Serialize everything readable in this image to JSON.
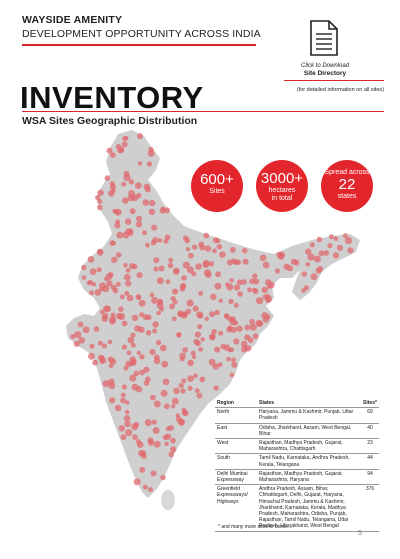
{
  "header": {
    "title": "WAYSIDE AMENITY",
    "subtitle": "DEVELOPMENT OPPORTUNITY ACROSS INDIA"
  },
  "download": {
    "icon": "document-icon",
    "caption": "Click to Download",
    "link_label": "Site Directory",
    "note": "(for detailed information on all sites)"
  },
  "page_title": "INVENTORY",
  "section_title": "WSA Sites Geographic Distribution",
  "stats": [
    {
      "value": "600+",
      "label": "Sites",
      "pre": ""
    },
    {
      "value": "3000+",
      "label": "hectares in total",
      "pre": ""
    },
    {
      "value": "22",
      "label": "states",
      "pre": "Spread across"
    }
  ],
  "colors": {
    "accent": "#e3262c",
    "map_land": "#cfcfcf",
    "dots": "#e06a6f"
  },
  "table": {
    "headers": [
      "Region",
      "States",
      "Sites*"
    ],
    "rows": [
      {
        "region": "North",
        "states": "Haryana, Jammu & Kashmir, Punjab, Uttar Pradesh",
        "sites": "69"
      },
      {
        "region": "East",
        "states": "Odisha, Jharkhand, Assam, West Bengal, Bihar",
        "sites": "40"
      },
      {
        "region": "West",
        "states": "Rajasthan, Madhya Pradesh, Gujarat, Maharashtra, Chattisgarh",
        "sites": "23"
      },
      {
        "region": "South",
        "states": "Tamil Nadu, Karnataka, Andhra Pradesh, Kerala, Telangana",
        "sites": "44"
      },
      {
        "region": "Delhi Mumbai Expressway",
        "states": "Rajasthan, Madhya Pradesh, Gujarat, Maharashtra, Haryana",
        "sites": "94"
      },
      {
        "region": "Greenfield Expressways/ Highways",
        "states": "Andhra Pradesh, Assam, Bihar, Chhattisgarh, Delhi, Gujarat, Haryana, Himachal Pradesh, Jammu & Kashmir, Jharkhand, Karnataka, Kerala, Madhya Pradesh, Maharashtra, Odisha, Punjab, Rajasthan, Tamil Nadu, Telangana, Uttar Pradesh, Uttarakhand, West Bengal",
        "sites": "376"
      }
    ],
    "footnote": "* and many more sites to come...."
  },
  "page_number": "5"
}
